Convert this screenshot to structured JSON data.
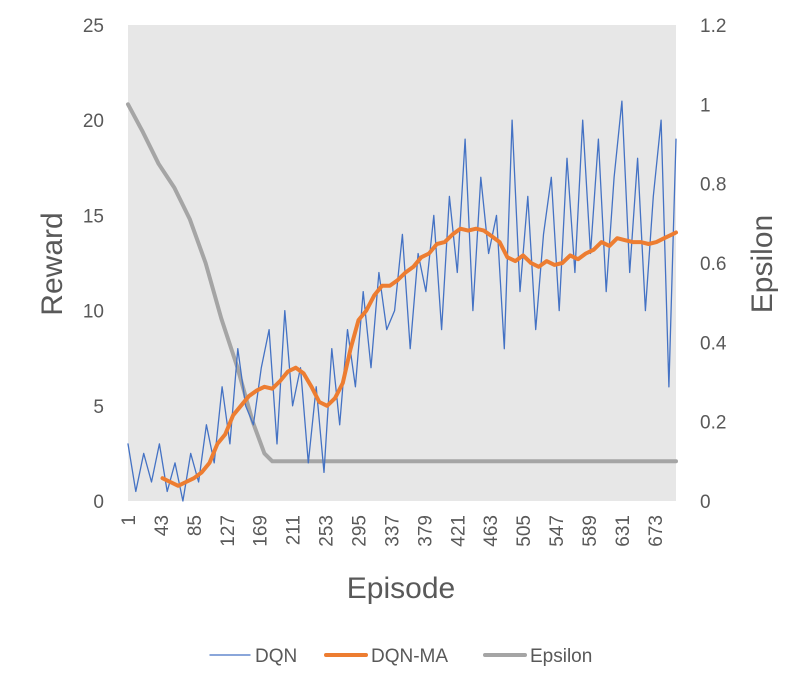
{
  "chart_data": {
    "type": "line",
    "xlabel": "Episode",
    "ylabel": "Reward",
    "y2label": "Epsilon",
    "x_range": [
      1,
      700
    ],
    "ylim": [
      0,
      25
    ],
    "y2lim": [
      0,
      1.2
    ],
    "y_ticks": [
      "0",
      "5",
      "10",
      "15",
      "20",
      "25"
    ],
    "y2_ticks": [
      "0",
      "0.2",
      "0.4",
      "0.6",
      "0.8",
      "1",
      "1.2"
    ],
    "x_ticks": [
      "1",
      "43",
      "85",
      "127",
      "169",
      "211",
      "253",
      "295",
      "337",
      "379",
      "421",
      "463",
      "505",
      "547",
      "589",
      "631",
      "673"
    ],
    "grid": false,
    "plot_background": "#e7e7e7",
    "legend": {
      "position": "bottom",
      "entries": [
        "DQN",
        "DQN-MA",
        "Epsilon"
      ]
    },
    "series": [
      {
        "name": "DQN",
        "axis": "left",
        "color": "#4472c4",
        "note_points": "raw per-episode reward, sampled every ~10 episodes; trace is noisy",
        "x": [
          1,
          11,
          21,
          31,
          41,
          51,
          61,
          71,
          81,
          91,
          101,
          111,
          121,
          131,
          141,
          151,
          161,
          171,
          181,
          191,
          201,
          211,
          221,
          231,
          241,
          251,
          261,
          271,
          281,
          291,
          301,
          311,
          321,
          331,
          341,
          351,
          361,
          371,
          381,
          391,
          401,
          411,
          421,
          431,
          441,
          451,
          461,
          471,
          481,
          491,
          501,
          511,
          521,
          531,
          541,
          551,
          561,
          571,
          581,
          591,
          601,
          611,
          621,
          631,
          641,
          651,
          661,
          671,
          681,
          691,
          700
        ],
        "values": [
          3,
          0.5,
          2.5,
          1,
          3,
          0.5,
          2,
          0,
          2.5,
          1,
          4,
          2,
          6,
          3,
          8,
          5,
          4,
          7,
          9,
          3,
          10,
          5,
          7,
          2,
          6,
          1.5,
          8,
          4,
          9,
          6,
          11,
          7,
          12,
          9,
          10,
          14,
          8,
          13,
          11,
          15,
          9,
          16,
          12,
          19,
          10,
          17,
          13,
          15,
          8,
          20,
          11,
          16,
          9,
          14,
          17,
          10,
          18,
          12,
          20,
          13,
          19,
          11,
          17,
          21,
          12,
          18,
          10,
          16,
          20,
          6,
          19
        ]
      },
      {
        "name": "DQN-MA",
        "axis": "left",
        "color": "#ed7d31",
        "x": [
          45,
          55,
          65,
          75,
          85,
          95,
          105,
          115,
          125,
          135,
          145,
          155,
          165,
          175,
          185,
          195,
          205,
          215,
          225,
          235,
          245,
          255,
          265,
          275,
          285,
          295,
          305,
          315,
          325,
          335,
          345,
          355,
          365,
          375,
          385,
          395,
          405,
          415,
          425,
          435,
          445,
          455,
          465,
          475,
          485,
          495,
          505,
          515,
          525,
          535,
          545,
          555,
          565,
          575,
          585,
          595,
          605,
          615,
          625,
          635,
          645,
          655,
          665,
          675,
          685,
          695,
          700
        ],
        "values": [
          1.2,
          1.0,
          0.8,
          1.0,
          1.2,
          1.5,
          2.0,
          3.0,
          3.5,
          4.5,
          5.0,
          5.5,
          5.8,
          6.0,
          5.9,
          6.3,
          6.8,
          7.0,
          6.7,
          6.0,
          5.2,
          5.0,
          5.4,
          6.2,
          8.0,
          9.5,
          10.0,
          10.8,
          11.3,
          11.3,
          11.6,
          12.0,
          12.3,
          12.8,
          13.0,
          13.5,
          13.6,
          14.0,
          14.3,
          14.2,
          14.3,
          14.2,
          13.9,
          13.6,
          12.8,
          12.6,
          12.9,
          12.5,
          12.3,
          12.6,
          12.4,
          12.5,
          12.9,
          12.7,
          13.0,
          13.2,
          13.6,
          13.4,
          13.8,
          13.7,
          13.6,
          13.6,
          13.5,
          13.6,
          13.8,
          14.0,
          14.1
        ]
      },
      {
        "name": "Epsilon",
        "axis": "right",
        "color": "#a5a5a5",
        "x": [
          1,
          20,
          40,
          60,
          80,
          100,
          120,
          140,
          160,
          175,
          185,
          200,
          300,
          400,
          500,
          600,
          700
        ],
        "values": [
          1.0,
          0.93,
          0.85,
          0.79,
          0.71,
          0.6,
          0.46,
          0.34,
          0.2,
          0.12,
          0.1,
          0.1,
          0.1,
          0.1,
          0.1,
          0.1,
          0.1
        ]
      }
    ]
  }
}
